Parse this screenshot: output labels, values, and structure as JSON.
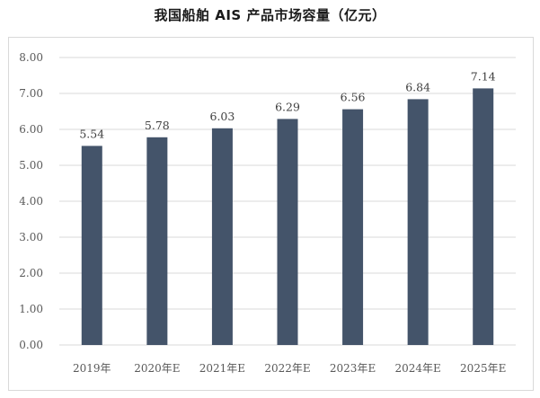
{
  "chart_data": {
    "type": "bar",
    "title": "我国船舶 AIS 产品市场容量（亿元）",
    "categories": [
      "2019年",
      "2020年E",
      "2021年E",
      "2022年E",
      "2023年E",
      "2024年E",
      "2025年E"
    ],
    "values": [
      5.54,
      5.78,
      6.03,
      6.29,
      6.56,
      6.84,
      7.14
    ],
    "data_labels": [
      "5.54",
      "5.78",
      "6.03",
      "6.29",
      "6.56",
      "6.84",
      "7.14"
    ],
    "y_ticks": [
      "0.00",
      "1.00",
      "2.00",
      "3.00",
      "4.00",
      "5.00",
      "6.00",
      "7.00",
      "8.00"
    ],
    "ylim": [
      0,
      8
    ],
    "xlabel": "",
    "ylabel": "",
    "grid": true,
    "bar_color": "#44546a",
    "grid_color": "#d9d9d9"
  }
}
